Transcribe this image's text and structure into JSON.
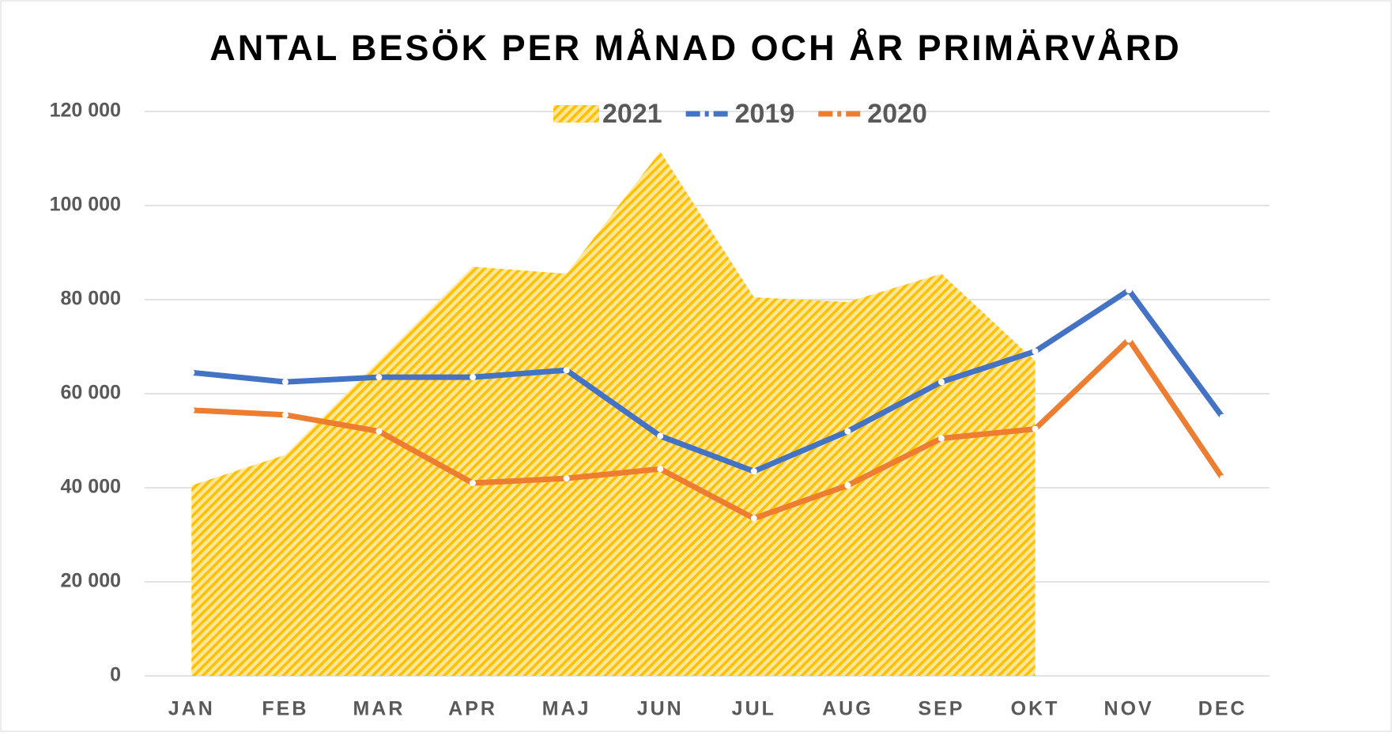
{
  "chart_data": {
    "type": "area-line",
    "title": "ANTAL BESÖK PER MÅNAD OCH ÅR PRIMÄRVÅRD",
    "categories": [
      "JAN",
      "FEB",
      "MAR",
      "APR",
      "MAJ",
      "JUN",
      "JUL",
      "AUG",
      "SEP",
      "OKT",
      "NOV",
      "DEC"
    ],
    "series": [
      {
        "name": "2021",
        "type": "area",
        "color": "#ffc000",
        "values": [
          40500,
          47000,
          67000,
          87000,
          85500,
          111500,
          80500,
          79500,
          85500,
          67000,
          null,
          null
        ]
      },
      {
        "name": "2019",
        "type": "line",
        "color": "#4472c4",
        "values": [
          64500,
          62500,
          63500,
          63500,
          65000,
          51000,
          43500,
          52000,
          62500,
          69000,
          82000,
          55000
        ]
      },
      {
        "name": "2020",
        "type": "line",
        "color": "#ed7d31",
        "values": [
          56500,
          55500,
          52000,
          41000,
          42000,
          44000,
          33500,
          40500,
          50500,
          52500,
          71500,
          42000
        ]
      }
    ],
    "ylim": [
      0,
      120000
    ],
    "yticks": [
      0,
      {
        "value": 20000,
        "label": "20 000"
      },
      {
        "value": 40000,
        "label": "40 000"
      },
      {
        "value": 60000,
        "label": "60 000"
      },
      {
        "value": 80000,
        "label": "80 000"
      },
      {
        "value": 100000,
        "label": "100 000"
      },
      {
        "value": 120000,
        "label": "120 000"
      }
    ],
    "grid": true,
    "legend": "top"
  }
}
